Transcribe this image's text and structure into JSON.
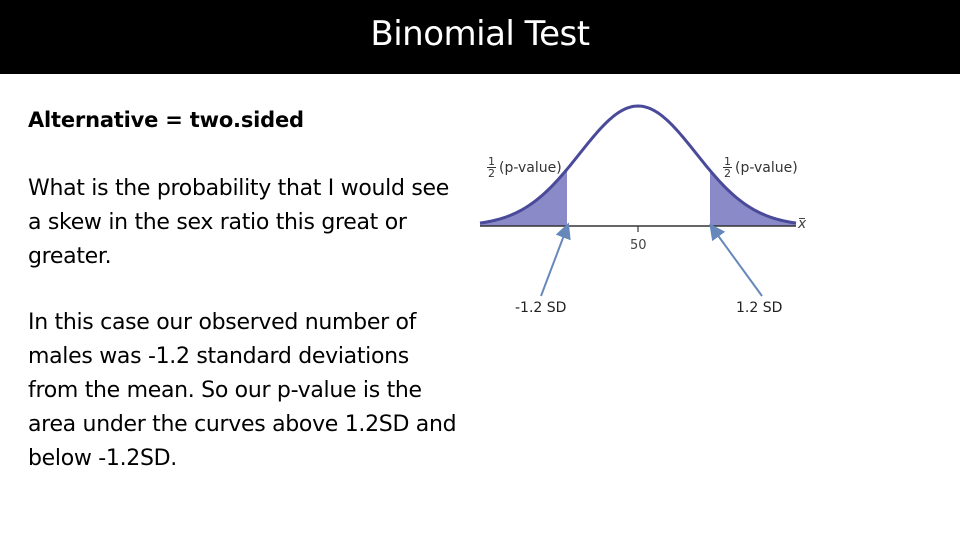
{
  "slide": {
    "title": "Binomial Test",
    "subtitle": "Alternative = two.sided",
    "paragraph_1": "What is the probability that I would see a skew in the sex ratio this great or greater.",
    "paragraph_2": "In this case our observed number of males was -1.2 standard deviations from the mean.  So our p-value is the area under the curves above 1.2SD and below -1.2SD."
  },
  "diagram": {
    "p_label_numerator": "1",
    "p_label_denominator": "2",
    "p_label_text": "(p-value)",
    "center_tick": "50",
    "axis_symbol": "x",
    "left_sd_label": "-1.2 SD",
    "right_sd_label": "1.2 SD",
    "shade_color": "#8a8ac8",
    "curve_color": "#4a4a9a",
    "arrow_color": "#6688bb"
  }
}
